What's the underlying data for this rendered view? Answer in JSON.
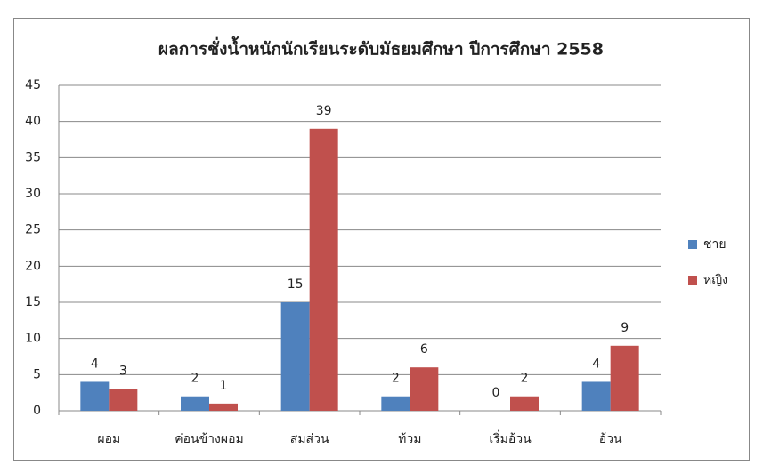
{
  "chart_data": {
    "type": "bar",
    "title": "ผลการชั่งน้ำหนักนักเรียนระดับมัธยมศึกษา ปีการศึกษา 2558",
    "categories": [
      "ผอม",
      "ค่อนข้างผอม",
      "สมส่วน",
      "ท้วม",
      "เริ่มอ้วน",
      "อ้วน"
    ],
    "series": [
      {
        "name": "ชาย",
        "color": "#4f81bd",
        "values": [
          4,
          2,
          15,
          2,
          0,
          4
        ]
      },
      {
        "name": "หญิง",
        "color": "#c0504d",
        "values": [
          3,
          1,
          39,
          6,
          2,
          9
        ]
      }
    ],
    "ylim": [
      0,
      45
    ],
    "yticks": [
      0,
      5,
      10,
      15,
      20,
      25,
      30,
      35,
      40,
      45
    ],
    "grid": true,
    "legend": "right"
  }
}
